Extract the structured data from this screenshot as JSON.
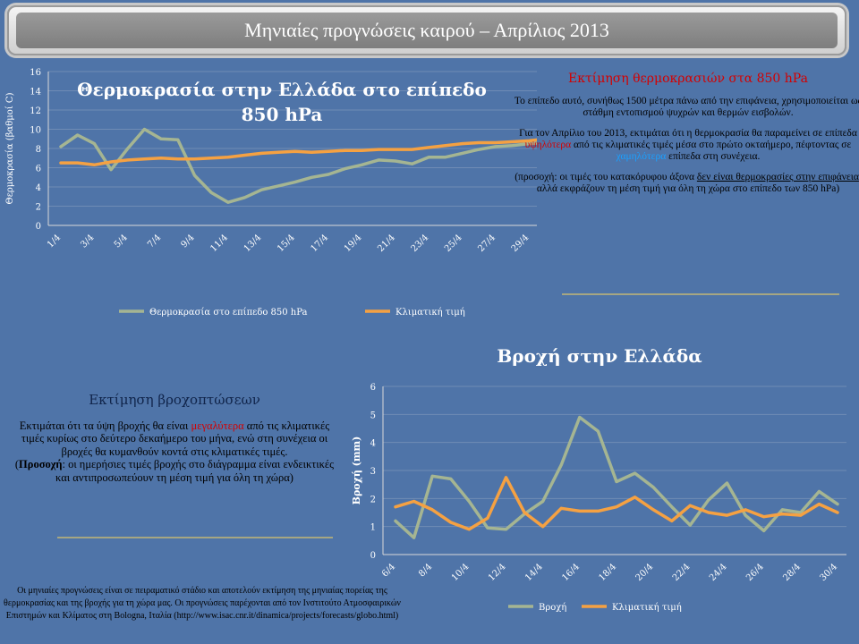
{
  "banner": {
    "title": "Μηνιαίες προγνώσεις καιρού – Απρίλιος 2013"
  },
  "temp_panel": {
    "heading": "Εκτίμηση θερμοκρασιών στα 850 hPa",
    "p1": "Το επίπεδο αυτό, συνήθως 1500 μέτρα πάνω από την επιφάνεια, χρησιμοποιείται ως στάθμη εντοπισμού ψυχρών και θερμών εισβολών.",
    "p2_a": "Για τον Απρίλιο του 2013, εκτιμάται ότι η θερμοκρασία θα παραμείνει σε επίπεδα",
    "p2_hi": "υψηλότερα",
    "p2_b": "από τις κλιματικές τιμές μέσα στο πρώτο οκταήμερο, πέφτοντας σε",
    "p2_lo": "χαμηλότερα",
    "p2_c": "επίπεδα στη συνέχεια.",
    "p3_a": "(προσοχή: οι τιμές του κατακόρυφου άξονα",
    "p3_u": "δεν είναι θερμοκρασίες στην επιφάνεια",
    "p3_b": ", αλλά εκφράζουν τη μέση τιμή για όλη τη χώρα στο επίπεδο των 850 hPa)"
  },
  "rain_panel": {
    "heading": "Εκτίμηση βροχοπτώσεων",
    "p1_a": "Εκτιμάται ότι τα ύψη βροχής θα είναι",
    "p1_hi": "μεγαλύτερα",
    "p1_b": "από τις κλιματικές τιμές κυρίως στο δεύτερο δεκαήμερο του μήνα, ενώ στη συνέχεια οι βροχές θα κυμανθούν κοντά στις κλιματικές τιμές.",
    "p2_a": "(",
    "p2_bold": "Προσοχή",
    "p2_b": ": οι ημερήσιες τιμές βροχής στο διάγραμμα είναι ενδεικτικές και αντιπροσωπεύουν τη μέση τιμή για όλη τη χώρα)"
  },
  "footer": {
    "text": "Οι μηνιαίες προγνώσεις είναι σε πειραματικό στάδιο και αποτελούν εκτίμηση της μηνιαίας πορείας της θερμοκρασίας και της βροχής για τη χώρα μας. Οι προγνώσεις παρέχονται από τον Ινστιτούτο Ατμοσφαιρικών Επιστημών και Κλίματος στη Bologna, Ιταλία (http://www.isac.cnr.it/dinamica/projects/forecasts/globo.html)"
  },
  "chart_data": [
    {
      "type": "line",
      "title": "Θερμοκρασία στην Ελλάδα στο επίπεδο 850 hPa",
      "xlabel": "",
      "ylabel": "Θερμοκρασία (βαθμοί C)",
      "ylim": [
        0,
        16
      ],
      "yticks": [
        "0",
        "2",
        "4",
        "6",
        "8",
        "10",
        "12",
        "14",
        "16"
      ],
      "xtick_labels": [
        "1/4",
        "3/4",
        "5/4",
        "7/4",
        "9/4",
        "11/4",
        "13/4",
        "15/4",
        "17/4",
        "19/4",
        "21/4",
        "23/4",
        "25/4",
        "27/4",
        "29/4"
      ],
      "x": [
        "1/4",
        "2/4",
        "3/4",
        "4/4",
        "5/4",
        "6/4",
        "7/4",
        "8/4",
        "9/4",
        "10/4",
        "11/4",
        "12/4",
        "13/4",
        "14/4",
        "15/4",
        "16/4",
        "17/4",
        "18/4",
        "19/4",
        "20/4",
        "21/4",
        "22/4",
        "23/4",
        "24/4",
        "25/4",
        "26/4",
        "27/4",
        "28/4",
        "29/4",
        "30/4"
      ],
      "grid": "horizontal",
      "legend": "bottom",
      "series": [
        {
          "name": "Θερμοκρασία στο επίπεδο 850 hPa",
          "color": "#a5b592",
          "values": [
            8.2,
            9.4,
            8.5,
            5.8,
            8.0,
            10.0,
            9.0,
            8.9,
            5.2,
            3.4,
            2.4,
            2.9,
            3.7,
            4.1,
            4.5,
            5.0,
            5.3,
            5.9,
            6.3,
            6.8,
            6.7,
            6.4,
            7.1,
            7.1,
            7.5,
            7.9,
            8.2,
            8.3,
            8.5,
            8.6
          ]
        },
        {
          "name": "Κλιματική τιμή",
          "color": "#f5a142",
          "values": [
            6.5,
            6.5,
            6.3,
            6.6,
            6.8,
            6.9,
            7.0,
            6.9,
            6.9,
            7.0,
            7.1,
            7.3,
            7.5,
            7.6,
            7.7,
            7.6,
            7.7,
            7.8,
            7.8,
            7.9,
            7.9,
            7.9,
            8.1,
            8.3,
            8.5,
            8.6,
            8.6,
            8.7,
            8.8,
            9.0
          ]
        }
      ]
    },
    {
      "type": "line",
      "title": "Βροχή στην Ελλάδα",
      "xlabel": "",
      "ylabel": "Βροχή (mm)",
      "ylim": [
        0,
        6
      ],
      "yticks": [
        "0",
        "1",
        "2",
        "3",
        "4",
        "5",
        "6"
      ],
      "xtick_labels": [
        "6/4",
        "8/4",
        "10/4",
        "12/4",
        "14/4",
        "16/4",
        "18/4",
        "20/4",
        "22/4",
        "24/4",
        "26/4",
        "28/4",
        "30/4"
      ],
      "x": [
        "6/4",
        "7/4",
        "8/4",
        "9/4",
        "10/4",
        "11/4",
        "12/4",
        "13/4",
        "14/4",
        "15/4",
        "16/4",
        "17/4",
        "18/4",
        "19/4",
        "20/4",
        "21/4",
        "22/4",
        "23/4",
        "24/4",
        "25/4",
        "26/4",
        "27/4",
        "28/4",
        "29/4",
        "30/4"
      ],
      "grid": "horizontal",
      "legend": "bottom",
      "series": [
        {
          "name": "Βροχή",
          "color": "#a5b592",
          "values": [
            1.2,
            0.6,
            2.8,
            2.7,
            1.9,
            0.95,
            0.9,
            1.45,
            1.9,
            3.2,
            4.9,
            4.4,
            2.6,
            2.9,
            2.4,
            1.7,
            1.05,
            1.95,
            2.55,
            1.4,
            0.85,
            1.6,
            1.5,
            2.25,
            1.8
          ]
        },
        {
          "name": "Κλιματική τιμή",
          "color": "#f5a142",
          "values": [
            1.7,
            1.9,
            1.6,
            1.15,
            0.9,
            1.3,
            2.75,
            1.5,
            1.0,
            1.65,
            1.55,
            1.55,
            1.7,
            2.05,
            1.6,
            1.2,
            1.75,
            1.5,
            1.4,
            1.6,
            1.35,
            1.45,
            1.4,
            1.8,
            1.5
          ]
        }
      ]
    }
  ]
}
